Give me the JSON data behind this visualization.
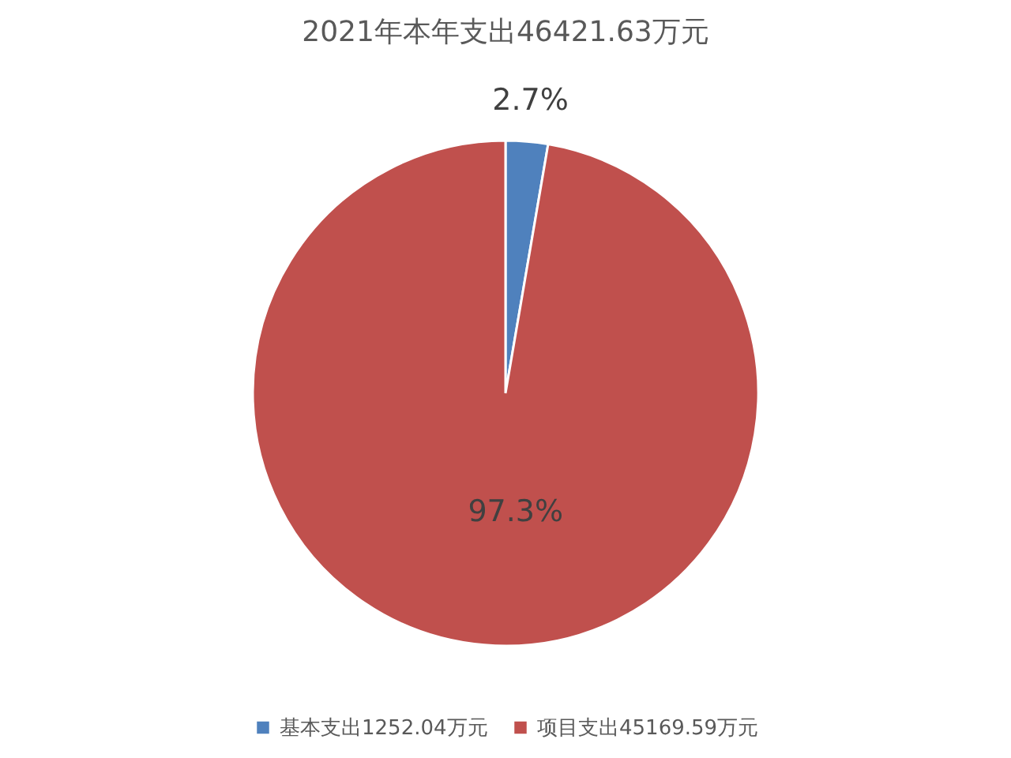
{
  "chart_data": {
    "type": "pie",
    "title": "2021年本年支出46421.63万元",
    "categories": [
      "基本支出1252.04万元",
      "项目支出45169.59万元"
    ],
    "values": [
      2.7,
      97.3
    ],
    "colors": [
      "#4f81bd",
      "#c0504d"
    ],
    "value_labels": [
      "2.7%",
      "97.3%"
    ],
    "legend": "bottom"
  }
}
